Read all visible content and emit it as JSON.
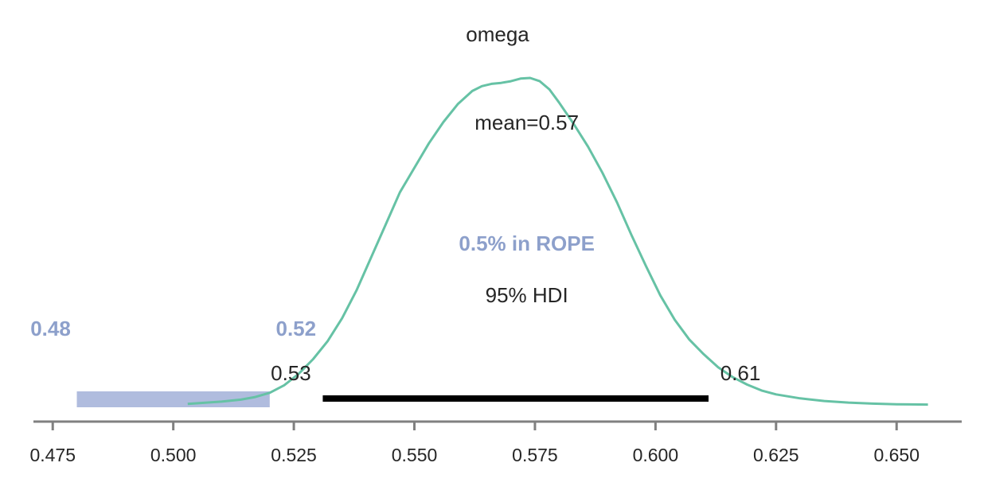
{
  "chart_data": {
    "type": "area",
    "title": "omega",
    "xlabel": "",
    "ylabel": "",
    "xlim": [
      0.471,
      0.6635
    ],
    "xticks": [
      0.475,
      0.5,
      0.525,
      0.55,
      0.575,
      0.6,
      0.625,
      0.65
    ],
    "xtick_labels": [
      "0.475",
      "0.500",
      "0.525",
      "0.550",
      "0.575",
      "0.600",
      "0.625",
      "0.650"
    ],
    "density": {
      "x": [
        0.503,
        0.506,
        0.51,
        0.514,
        0.517,
        0.52,
        0.523,
        0.526,
        0.529,
        0.532,
        0.535,
        0.538,
        0.541,
        0.544,
        0.547,
        0.55,
        0.553,
        0.556,
        0.559,
        0.562,
        0.564,
        0.566,
        0.568,
        0.57,
        0.572,
        0.574,
        0.576,
        0.578,
        0.58,
        0.583,
        0.586,
        0.589,
        0.592,
        0.595,
        0.598,
        0.601,
        0.604,
        0.607,
        0.61,
        0.613,
        0.616,
        0.619,
        0.622,
        0.625,
        0.63,
        0.635,
        0.64,
        0.645,
        0.65,
        0.6565
      ],
      "y": [
        0.003,
        0.006,
        0.01,
        0.016,
        0.024,
        0.037,
        0.06,
        0.095,
        0.14,
        0.195,
        0.265,
        0.35,
        0.45,
        0.55,
        0.65,
        0.725,
        0.8,
        0.865,
        0.92,
        0.96,
        0.975,
        0.982,
        0.985,
        0.99,
        0.998,
        1.0,
        0.99,
        0.965,
        0.925,
        0.86,
        0.79,
        0.71,
        0.62,
        0.52,
        0.425,
        0.335,
        0.26,
        0.2,
        0.155,
        0.115,
        0.085,
        0.062,
        0.044,
        0.032,
        0.02,
        0.012,
        0.007,
        0.004,
        0.002,
        0.001
      ],
      "color": "#66c2a5"
    },
    "mean": {
      "value": 0.57,
      "label": "mean=0.57"
    },
    "hdi": {
      "label": "95% HDI",
      "low": 0.531,
      "high": 0.611,
      "low_label": "0.53",
      "high_label": "0.61",
      "color": "#000000"
    },
    "rope": {
      "low": 0.48,
      "high": 0.52,
      "low_label": "0.48",
      "high_label": "0.52",
      "pct_label": "0.5% in ROPE",
      "color": "#8da0cb",
      "fill": "#b0bcde"
    },
    "grid": false,
    "axis_color": "#808080",
    "text_color": "#262626"
  }
}
